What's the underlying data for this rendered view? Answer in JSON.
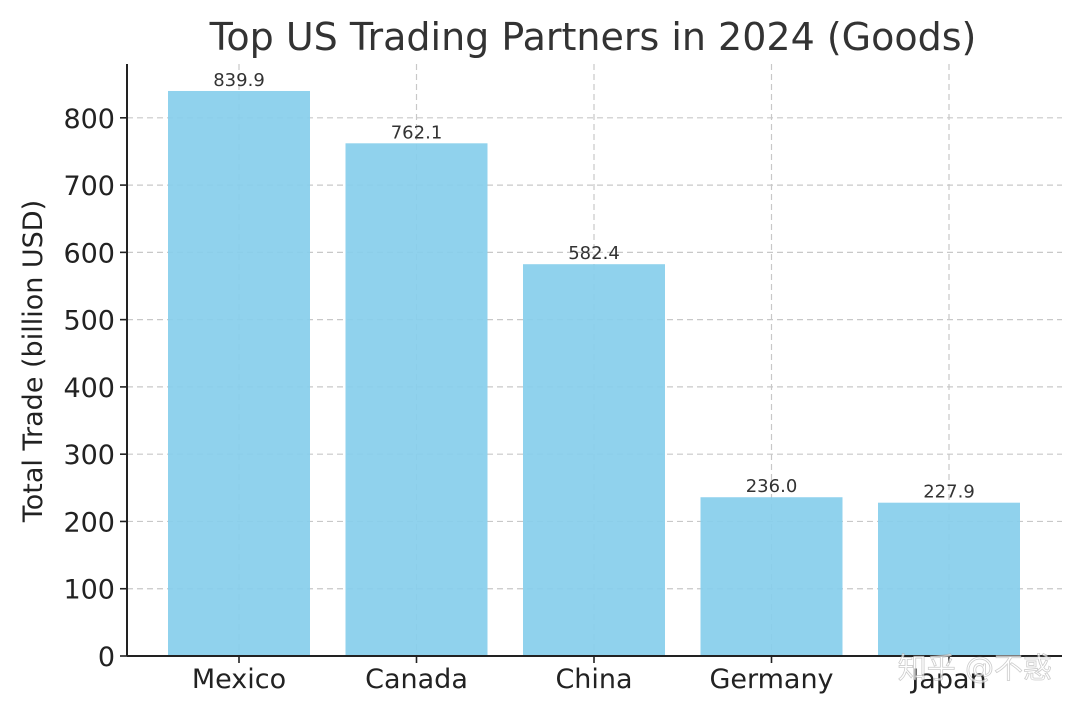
{
  "chart_data": {
    "type": "bar",
    "title": "Top US Trading Partners in 2024 (Goods)",
    "xlabel": "",
    "ylabel": "Total Trade (billion USD)",
    "categories": [
      "Mexico",
      "Canada",
      "China",
      "Germany",
      "Japan"
    ],
    "values": [
      839.9,
      762.1,
      582.4,
      236.0,
      227.9
    ],
    "value_labels": [
      "839.9",
      "762.1",
      "582.4",
      "236.0",
      "227.9"
    ],
    "yticks": [
      0,
      100,
      200,
      300,
      400,
      500,
      600,
      700,
      800
    ],
    "ylim": [
      0,
      880
    ],
    "grid": true,
    "bar_color": "#87CEEB",
    "watermark": "知乎 @不惑"
  }
}
